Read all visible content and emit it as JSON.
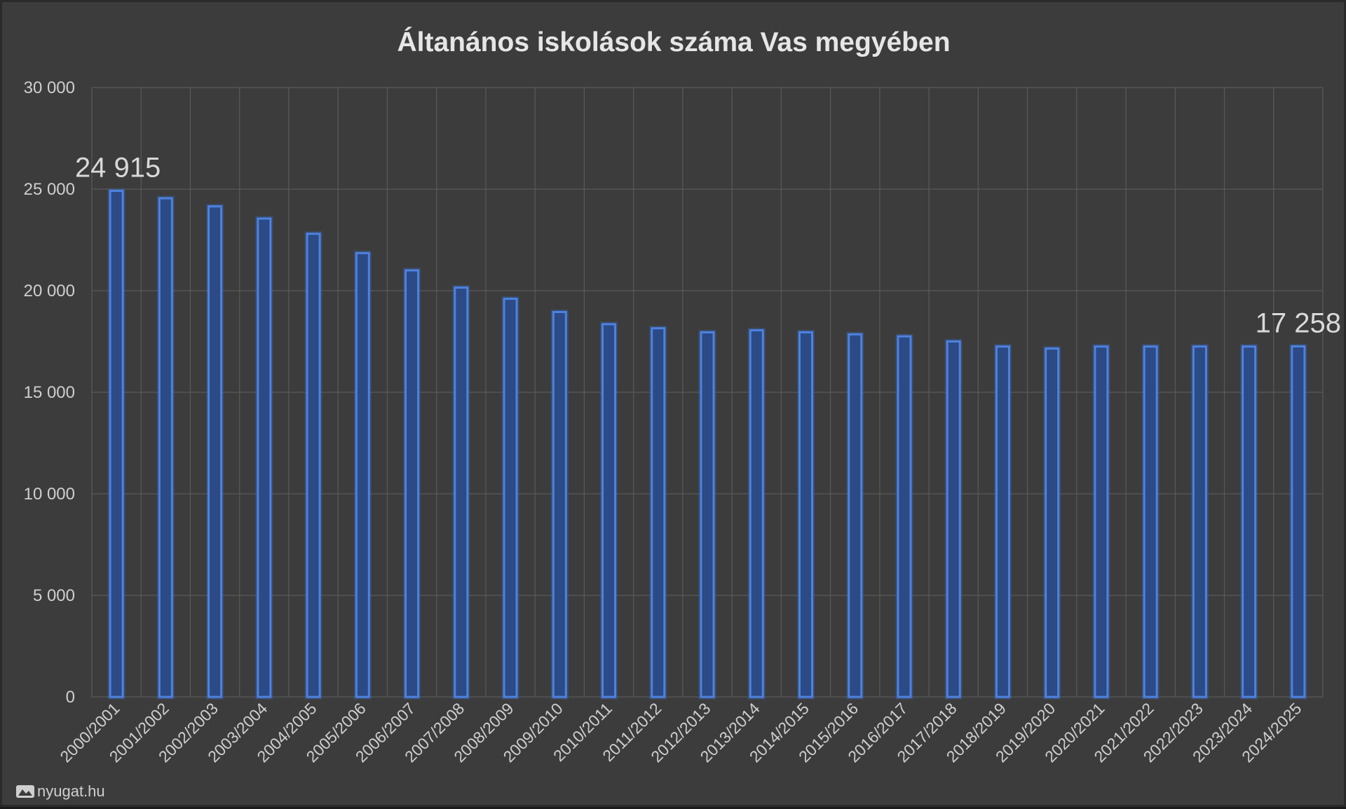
{
  "watermark": {
    "text": "nyugat.hu",
    "icon": "nyugat-logo-icon"
  },
  "colors": {
    "background": "#3c3c3c",
    "bar_fill": "#2b4a86",
    "bar_edge": "#4d82e0",
    "grid": "#5a5a5a",
    "text": "#e6e6e6"
  },
  "chart_data": {
    "type": "bar",
    "title": "Áltanános iskolások száma Vas megyében",
    "xlabel": "",
    "ylabel": "",
    "ylim": [
      0,
      30000
    ],
    "yticks": [
      0,
      5000,
      10000,
      15000,
      20000,
      25000,
      30000
    ],
    "ytick_labels": [
      "0",
      "5 000",
      "10 000",
      "15 000",
      "20 000",
      "25 000",
      "30 000"
    ],
    "grid": true,
    "categories": [
      "2000/2001",
      "2001/2002",
      "2002/2003",
      "2003/2004",
      "2004/2005",
      "2005/2006",
      "2006/2007",
      "2007/2008",
      "2008/2009",
      "2009/2010",
      "2010/2011",
      "2011/2012",
      "2012/2013",
      "2013/2014",
      "2014/2015",
      "2015/2016",
      "2016/2017",
      "2017/2018",
      "2018/2019",
      "2019/2020",
      "2020/2021",
      "2021/2022",
      "2022/2023",
      "2023/2024",
      "2024/2025"
    ],
    "values": [
      24915,
      24550,
      24150,
      23550,
      22800,
      21850,
      21000,
      20150,
      19600,
      18950,
      18350,
      18150,
      17950,
      18050,
      17950,
      17850,
      17750,
      17500,
      17250,
      17150,
      17250,
      17250,
      17250,
      17250,
      17258
    ],
    "data_labels": [
      {
        "index": 0,
        "text": "24 915"
      },
      {
        "index": 24,
        "text": "17 258"
      }
    ]
  }
}
